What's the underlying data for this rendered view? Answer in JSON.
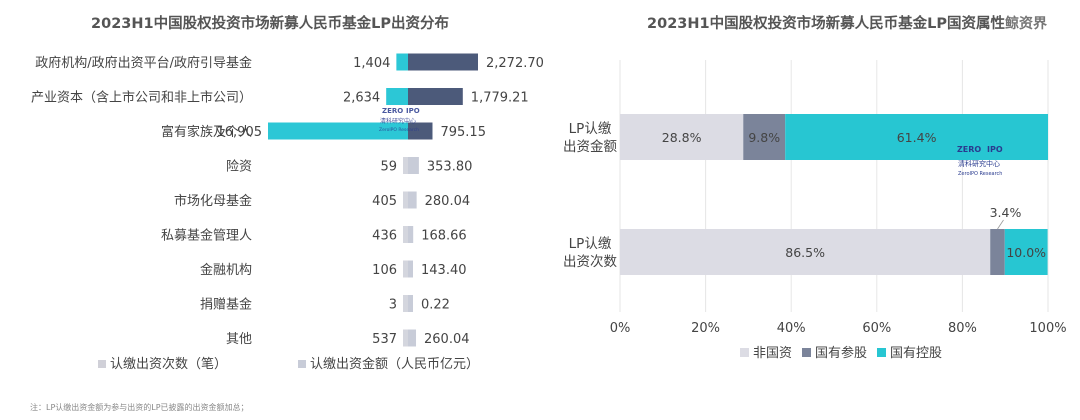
{
  "left_chart": {
    "title": "2023H1中国股权投资市场新募人民币基金LP出资分布",
    "legend": [
      "认缴出资次数（笔）",
      "认缴出资金额（人民币亿元）"
    ],
    "note": "注：LP认缴出资金额为参与出资的LP已披露的出资金额加总；",
    "watermark": {
      "line1": "ZERO",
      "line2": "IPO",
      "line3": "清科研究中心",
      "line4": "ZeroIPO Research"
    }
  },
  "right_chart": {
    "title": "2023H1中国股权投资市场新募人民币基金LP国资属性",
    "watermark": {
      "line1": "ZERO",
      "line2": "IPO",
      "line3": "清科研究中心",
      "line4": "ZeroIPO Research"
    }
  },
  "brand": "鲸资界",
  "chart_data": [
    {
      "type": "bar",
      "orientation": "horizontal",
      "title": "2023H1中国股权投资市场新募人民币基金LP出资分布",
      "categories": [
        "政府机构/政府出资平台/政府引导基金",
        "产业资本（含上市公司和非上市公司）",
        "富有家族及个人",
        "险资",
        "市场化母基金",
        "私募基金管理人",
        "金融机构",
        "捐赠基金",
        "其他"
      ],
      "series": [
        {
          "name": "认缴出资次数（笔）",
          "color": "#2cc7d6",
          "values": [
            1404,
            2634,
            16905,
            59,
            405,
            436,
            106,
            3,
            537
          ],
          "labels": [
            "1,404",
            "2,634",
            "16,905",
            "59",
            "405",
            "436",
            "106",
            "3",
            "537"
          ]
        },
        {
          "name": "认缴出资金额（人民币亿元）",
          "color": "#4c5a7a",
          "values": [
            2272.7,
            1779.21,
            795.15,
            353.8,
            280.04,
            168.66,
            143.4,
            0.22,
            260.04
          ],
          "labels": [
            "2,272.70",
            "1,779.21",
            "795.15",
            "353.80",
            "280.04",
            "168.66",
            "143.40",
            "0.22",
            "260.04"
          ]
        }
      ],
      "legend_position": "bottom"
    },
    {
      "type": "bar",
      "orientation": "horizontal",
      "stacked": "percent",
      "title": "2023H1中国股权投资市场新募人民币基金LP国资属性",
      "categories": [
        "LP认缴出资金额",
        "LP认缴出资次数"
      ],
      "series": [
        {
          "name": "非国资",
          "color": "#dcdce4",
          "values": [
            28.8,
            86.5
          ],
          "labels": [
            "28.8%",
            "86.5%"
          ]
        },
        {
          "name": "国有参股",
          "color": "#7b849a",
          "values": [
            9.8,
            3.4
          ],
          "labels": [
            "9.8%",
            "3.4%"
          ]
        },
        {
          "name": "国有控股",
          "color": "#27c6d2",
          "values": [
            61.4,
            10.0
          ],
          "labels": [
            "61.4%",
            "10.0%"
          ]
        }
      ],
      "x_ticks": [
        "0%",
        "20%",
        "40%",
        "60%",
        "80%",
        "100%"
      ],
      "xlim": [
        0,
        100
      ],
      "grid": true,
      "legend_position": "bottom"
    }
  ]
}
